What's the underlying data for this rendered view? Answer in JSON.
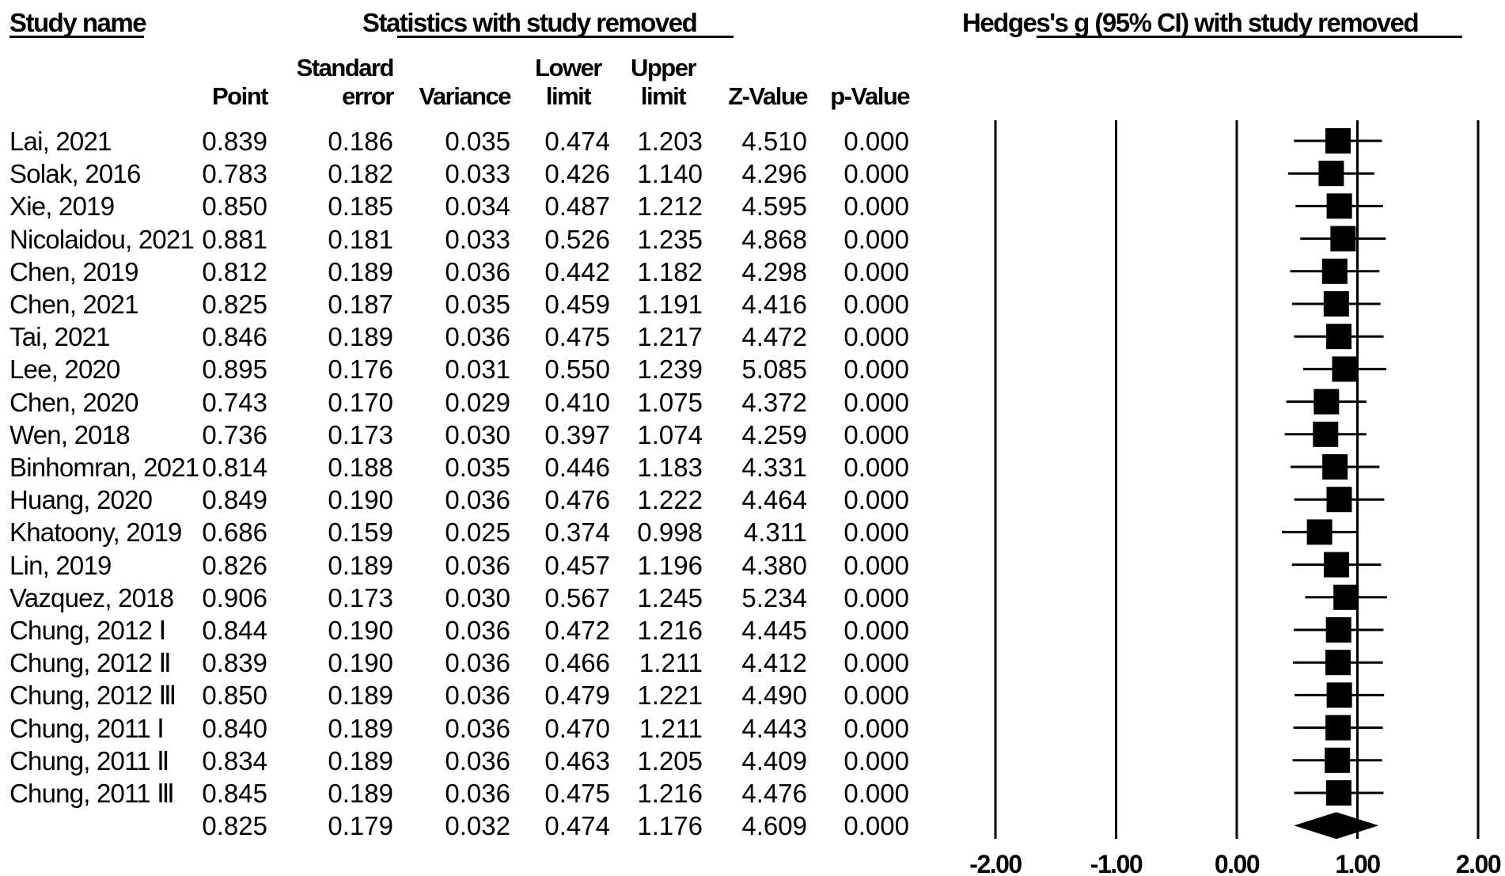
{
  "headers": {
    "study_name": "Study name",
    "statistics": "Statistics with study removed",
    "plot_title": "Hedges's g (95% CI) with study removed"
  },
  "columns": [
    {
      "line1": "",
      "line2": "Point"
    },
    {
      "line1": "Standard",
      "line2": "error"
    },
    {
      "line1": "",
      "line2": "Variance"
    },
    {
      "line1": "Lower",
      "line2": "limit"
    },
    {
      "line1": "Upper",
      "line2": "limit"
    },
    {
      "line1": "",
      "line2": "Z-Value"
    },
    {
      "line1": "",
      "line2": "p-Value"
    }
  ],
  "rows": [
    {
      "name": "Lai, 2021",
      "point": "0.839",
      "se": "0.186",
      "variance": "0.035",
      "lower": "0.474",
      "upper": "1.203",
      "z": "4.510",
      "p": "0.000"
    },
    {
      "name": "Solak, 2016",
      "point": "0.783",
      "se": "0.182",
      "variance": "0.033",
      "lower": "0.426",
      "upper": "1.140",
      "z": "4.296",
      "p": "0.000"
    },
    {
      "name": "Xie, 2019",
      "point": "0.850",
      "se": "0.185",
      "variance": "0.034",
      "lower": "0.487",
      "upper": "1.212",
      "z": "4.595",
      "p": "0.000"
    },
    {
      "name": "Nicolaidou, 2021",
      "point": "0.881",
      "se": "0.181",
      "variance": "0.033",
      "lower": "0.526",
      "upper": "1.235",
      "z": "4.868",
      "p": "0.000"
    },
    {
      "name": "Chen, 2019",
      "point": "0.812",
      "se": "0.189",
      "variance": "0.036",
      "lower": "0.442",
      "upper": "1.182",
      "z": "4.298",
      "p": "0.000"
    },
    {
      "name": "Chen, 2021",
      "point": "0.825",
      "se": "0.187",
      "variance": "0.035",
      "lower": "0.459",
      "upper": "1.191",
      "z": "4.416",
      "p": "0.000"
    },
    {
      "name": "Tai, 2021",
      "point": "0.846",
      "se": "0.189",
      "variance": "0.036",
      "lower": "0.475",
      "upper": "1.217",
      "z": "4.472",
      "p": "0.000"
    },
    {
      "name": "Lee, 2020",
      "point": "0.895",
      "se": "0.176",
      "variance": "0.031",
      "lower": "0.550",
      "upper": "1.239",
      "z": "5.085",
      "p": "0.000"
    },
    {
      "name": "Chen, 2020",
      "point": "0.743",
      "se": "0.170",
      "variance": "0.029",
      "lower": "0.410",
      "upper": "1.075",
      "z": "4.372",
      "p": "0.000"
    },
    {
      "name": "Wen, 2018",
      "point": "0.736",
      "se": "0.173",
      "variance": "0.030",
      "lower": "0.397",
      "upper": "1.074",
      "z": "4.259",
      "p": "0.000"
    },
    {
      "name": "Binhomran, 2021",
      "point": "0.814",
      "se": "0.188",
      "variance": "0.035",
      "lower": "0.446",
      "upper": "1.183",
      "z": "4.331",
      "p": "0.000"
    },
    {
      "name": "Huang, 2020",
      "point": "0.849",
      "se": "0.190",
      "variance": "0.036",
      "lower": "0.476",
      "upper": "1.222",
      "z": "4.464",
      "p": "0.000"
    },
    {
      "name": "Khatoony, 2019",
      "point": "0.686",
      "se": "0.159",
      "variance": "0.025",
      "lower": "0.374",
      "upper": "0.998",
      "z": "4.311",
      "p": "0.000"
    },
    {
      "name": "Lin, 2019",
      "point": "0.826",
      "se": "0.189",
      "variance": "0.036",
      "lower": "0.457",
      "upper": "1.196",
      "z": "4.380",
      "p": "0.000"
    },
    {
      "name": "Vazquez, 2018",
      "point": "0.906",
      "se": "0.173",
      "variance": "0.030",
      "lower": "0.567",
      "upper": "1.245",
      "z": "5.234",
      "p": "0.000"
    },
    {
      "name": "Chung, 2012 Ⅰ",
      "point": "0.844",
      "se": "0.190",
      "variance": "0.036",
      "lower": "0.472",
      "upper": "1.216",
      "z": "4.445",
      "p": "0.000"
    },
    {
      "name": "Chung, 2012 Ⅱ",
      "point": "0.839",
      "se": "0.190",
      "variance": "0.036",
      "lower": "0.466",
      "upper": "1.211",
      "z": "4.412",
      "p": "0.000"
    },
    {
      "name": "Chung, 2012 Ⅲ",
      "point": "0.850",
      "se": "0.189",
      "variance": "0.036",
      "lower": "0.479",
      "upper": "1.221",
      "z": "4.490",
      "p": "0.000"
    },
    {
      "name": "Chung, 2011 Ⅰ",
      "point": "0.840",
      "se": "0.189",
      "variance": "0.036",
      "lower": "0.470",
      "upper": "1.211",
      "z": "4.443",
      "p": "0.000"
    },
    {
      "name": "Chung, 2011 Ⅱ",
      "point": "0.834",
      "se": "0.189",
      "variance": "0.036",
      "lower": "0.463",
      "upper": "1.205",
      "z": "4.409",
      "p": "0.000"
    },
    {
      "name": "Chung, 2011 Ⅲ",
      "point": "0.845",
      "se": "0.189",
      "variance": "0.036",
      "lower": "0.475",
      "upper": "1.216",
      "z": "4.476",
      "p": "0.000"
    }
  ],
  "summary": {
    "point": "0.825",
    "se": "0.179",
    "variance": "0.032",
    "lower": "0.474",
    "upper": "1.176",
    "z": "4.609",
    "p": "0.000"
  },
  "chart_data": {
    "type": "forest",
    "title": "Hedges's g (95% CI) with study removed",
    "xlim": [
      -2,
      2
    ],
    "ticks": [
      -2,
      -1,
      0,
      1,
      2
    ],
    "tick_labels": [
      "-2.00",
      "-1.00",
      "0.00",
      "1.00",
      "2.00"
    ],
    "gridlines": "vertical at each tick",
    "points": [
      0.839,
      0.783,
      0.85,
      0.881,
      0.812,
      0.825,
      0.846,
      0.895,
      0.743,
      0.736,
      0.814,
      0.849,
      0.686,
      0.826,
      0.906,
      0.844,
      0.839,
      0.85,
      0.84,
      0.834,
      0.845
    ],
    "lower": [
      0.474,
      0.426,
      0.487,
      0.526,
      0.442,
      0.459,
      0.475,
      0.55,
      0.41,
      0.397,
      0.446,
      0.476,
      0.374,
      0.457,
      0.567,
      0.472,
      0.466,
      0.479,
      0.47,
      0.463,
      0.475
    ],
    "upper": [
      1.203,
      1.14,
      1.212,
      1.235,
      1.182,
      1.191,
      1.217,
      1.239,
      1.075,
      1.074,
      1.183,
      1.222,
      0.998,
      1.196,
      1.245,
      1.216,
      1.211,
      1.221,
      1.211,
      1.205,
      1.216
    ],
    "summary": {
      "point": 0.825,
      "lower": 0.474,
      "upper": 1.176
    }
  }
}
